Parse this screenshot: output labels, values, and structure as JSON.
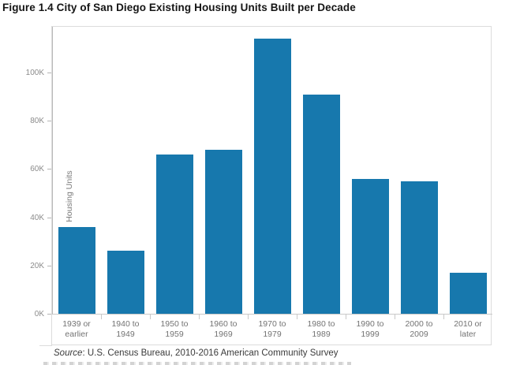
{
  "title": "Figure 1.4 City of San Diego Existing Housing Units Built per Decade",
  "source": {
    "label_italic": "Source",
    "text": ": U.S. Census Bureau, 2010-2016 American Community Survey"
  },
  "chart_data": {
    "type": "bar",
    "title": "Figure 1.4 City of San Diego Existing Housing Units Built per Decade",
    "xlabel": "",
    "ylabel": "Housing Units",
    "categories": [
      "1939 or\nearlier",
      "1940 to\n1949",
      "1950 to\n1959",
      "1960 to\n1969",
      "1970 to\n1979",
      "1980 to\n1989",
      "1990 to\n1999",
      "2000 to\n2009",
      "2010 or\nlater"
    ],
    "values": [
      36000,
      26000,
      66000,
      68000,
      114000,
      91000,
      56000,
      55000,
      17000
    ],
    "yticks": [
      {
        "label": "0K",
        "value": 0
      },
      {
        "label": "20K",
        "value": 20000
      },
      {
        "label": "40K",
        "value": 40000
      },
      {
        "label": "60K",
        "value": 60000
      },
      {
        "label": "80K",
        "value": 80000
      },
      {
        "label": "100K",
        "value": 100000
      }
    ],
    "ylim": [
      0,
      119000
    ],
    "grid": false,
    "legend": false,
    "bar_color": "#1778ad",
    "source": "Source: U.S. Census Bureau, 2010-2016 American Community Survey"
  },
  "colors": {
    "bar": "#1778ad",
    "plot_border": "#dcdcdc",
    "axis_line": "#b9b9b9",
    "tick_label": "#8b8b8b",
    "x_label": "#737373",
    "title_text": "#151515",
    "source_text": "#3a3a3a"
  }
}
